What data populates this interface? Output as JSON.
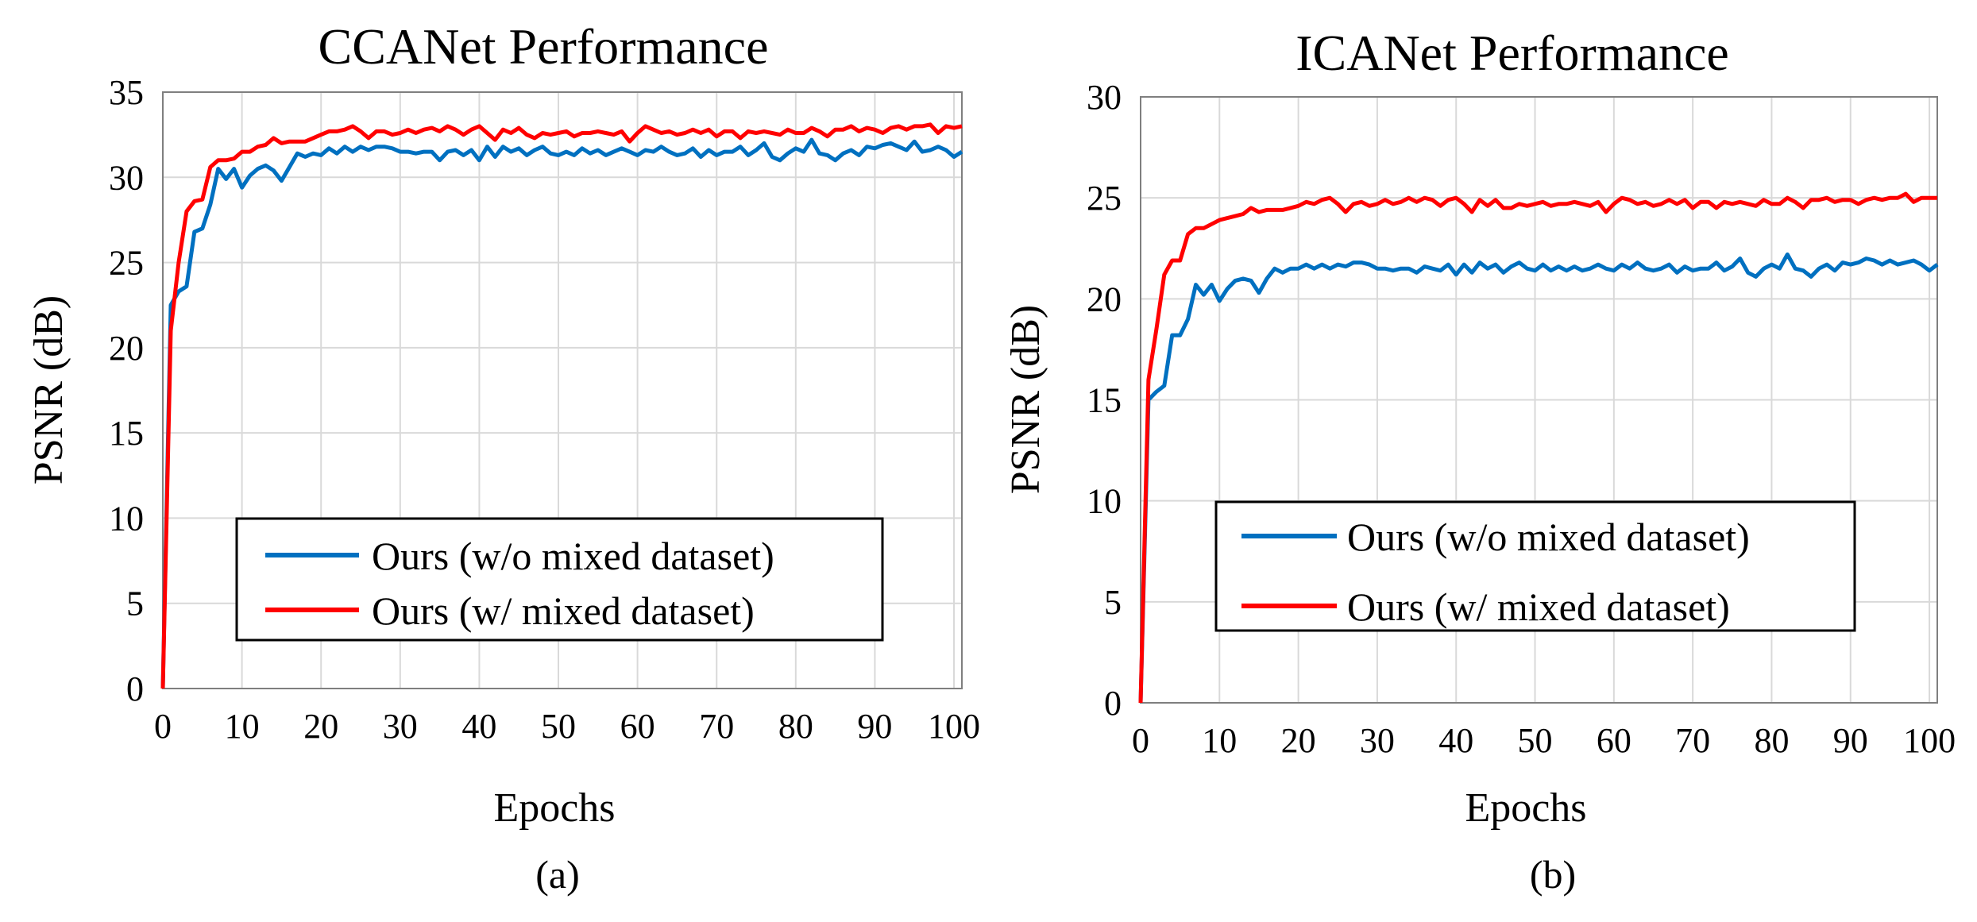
{
  "chart_data": [
    {
      "type": "line",
      "title": "CCANet Performance",
      "xlabel": "Epochs",
      "ylabel": "PSNR (dB)",
      "caption": "(a)",
      "xlim": [
        0,
        101
      ],
      "ylim": [
        0,
        35
      ],
      "xticks": [
        "0",
        "10",
        "20",
        "30",
        "40",
        "50",
        "60",
        "70",
        "80",
        "90",
        "100"
      ],
      "yticks": [
        "0",
        "5",
        "10",
        "15",
        "20",
        "25",
        "30",
        "35"
      ],
      "grid": true,
      "legend_position": "lower-right",
      "x": [
        0,
        1,
        2,
        3,
        4,
        5,
        6,
        7,
        8,
        9,
        10,
        11,
        12,
        13,
        14,
        15,
        16,
        17,
        18,
        19,
        20,
        21,
        22,
        23,
        24,
        25,
        26,
        27,
        28,
        29,
        30,
        31,
        32,
        33,
        34,
        35,
        36,
        37,
        38,
        39,
        40,
        41,
        42,
        43,
        44,
        45,
        46,
        47,
        48,
        49,
        50,
        51,
        52,
        53,
        54,
        55,
        56,
        57,
        58,
        59,
        60,
        61,
        62,
        63,
        64,
        65,
        66,
        67,
        68,
        69,
        70,
        71,
        72,
        73,
        74,
        75,
        76,
        77,
        78,
        79,
        80,
        81,
        82,
        83,
        84,
        85,
        86,
        87,
        88,
        89,
        90,
        91,
        92,
        93,
        94,
        95,
        96,
        97,
        98,
        99,
        100,
        101
      ],
      "series": [
        {
          "name": "Ours (w/o mixed dataset)",
          "color": "#0070c0",
          "values": [
            0,
            22.5,
            23.3,
            23.6,
            26.8,
            27.0,
            28.4,
            30.5,
            29.9,
            30.5,
            29.4,
            30.1,
            30.5,
            30.7,
            30.4,
            29.8,
            30.6,
            31.4,
            31.2,
            31.4,
            31.3,
            31.7,
            31.4,
            31.8,
            31.5,
            31.8,
            31.6,
            31.8,
            31.8,
            31.7,
            31.5,
            31.5,
            31.4,
            31.5,
            31.5,
            31.0,
            31.5,
            31.6,
            31.3,
            31.6,
            31.0,
            31.8,
            31.2,
            31.8,
            31.5,
            31.7,
            31.3,
            31.6,
            31.8,
            31.4,
            31.3,
            31.5,
            31.3,
            31.7,
            31.4,
            31.6,
            31.3,
            31.5,
            31.7,
            31.5,
            31.3,
            31.6,
            31.5,
            31.8,
            31.5,
            31.3,
            31.4,
            31.7,
            31.2,
            31.6,
            31.3,
            31.5,
            31.5,
            31.8,
            31.3,
            31.6,
            32.0,
            31.2,
            31.0,
            31.4,
            31.7,
            31.5,
            32.2,
            31.4,
            31.3,
            31.0,
            31.4,
            31.6,
            31.3,
            31.8,
            31.7,
            31.9,
            32.0,
            31.8,
            31.6,
            32.1,
            31.5,
            31.6,
            31.8,
            31.6,
            31.2,
            31.5
          ]
        },
        {
          "name": "Ours (w/ mixed dataset)",
          "color": "#ff0000",
          "values": [
            0,
            21.0,
            25.0,
            28.0,
            28.6,
            28.7,
            30.6,
            31.0,
            31.0,
            31.1,
            31.5,
            31.5,
            31.8,
            31.9,
            32.3,
            32.0,
            32.1,
            32.1,
            32.1,
            32.3,
            32.5,
            32.7,
            32.7,
            32.8,
            33.0,
            32.7,
            32.3,
            32.7,
            32.7,
            32.5,
            32.6,
            32.8,
            32.6,
            32.8,
            32.9,
            32.7,
            33.0,
            32.8,
            32.5,
            32.8,
            33.0,
            32.6,
            32.2,
            32.8,
            32.6,
            32.9,
            32.5,
            32.3,
            32.6,
            32.5,
            32.6,
            32.7,
            32.4,
            32.6,
            32.6,
            32.7,
            32.6,
            32.5,
            32.7,
            32.1,
            32.6,
            33.0,
            32.8,
            32.6,
            32.7,
            32.5,
            32.6,
            32.8,
            32.6,
            32.8,
            32.4,
            32.7,
            32.7,
            32.3,
            32.7,
            32.6,
            32.7,
            32.6,
            32.5,
            32.8,
            32.6,
            32.6,
            32.9,
            32.7,
            32.4,
            32.8,
            32.8,
            33.0,
            32.7,
            32.9,
            32.8,
            32.6,
            32.9,
            33.0,
            32.8,
            33.0,
            33.0,
            33.1,
            32.6,
            33.0,
            32.9,
            33.0
          ]
        }
      ]
    },
    {
      "type": "line",
      "title": "ICANet Performance",
      "xlabel": "Epochs",
      "ylabel": "PSNR (dB)",
      "caption": "(b)",
      "xlim": [
        0,
        101
      ],
      "ylim": [
        0,
        30
      ],
      "xticks": [
        "0",
        "10",
        "20",
        "30",
        "40",
        "50",
        "60",
        "70",
        "80",
        "90",
        "100"
      ],
      "yticks": [
        "0",
        "5",
        "10",
        "15",
        "20",
        "25",
        "30"
      ],
      "grid": true,
      "legend_position": "lower-right",
      "x": [
        0,
        1,
        2,
        3,
        4,
        5,
        6,
        7,
        8,
        9,
        10,
        11,
        12,
        13,
        14,
        15,
        16,
        17,
        18,
        19,
        20,
        21,
        22,
        23,
        24,
        25,
        26,
        27,
        28,
        29,
        30,
        31,
        32,
        33,
        34,
        35,
        36,
        37,
        38,
        39,
        40,
        41,
        42,
        43,
        44,
        45,
        46,
        47,
        48,
        49,
        50,
        51,
        52,
        53,
        54,
        55,
        56,
        57,
        58,
        59,
        60,
        61,
        62,
        63,
        64,
        65,
        66,
        67,
        68,
        69,
        70,
        71,
        72,
        73,
        74,
        75,
        76,
        77,
        78,
        79,
        80,
        81,
        82,
        83,
        84,
        85,
        86,
        87,
        88,
        89,
        90,
        91,
        92,
        93,
        94,
        95,
        96,
        97,
        98,
        99,
        100,
        101
      ],
      "series": [
        {
          "name": "Ours (w/o mixed dataset)",
          "color": "#0070c0",
          "values": [
            0,
            15.0,
            15.4,
            15.7,
            18.2,
            18.2,
            19.0,
            20.7,
            20.2,
            20.7,
            19.9,
            20.5,
            20.9,
            21.0,
            20.9,
            20.3,
            21.0,
            21.5,
            21.3,
            21.5,
            21.5,
            21.7,
            21.5,
            21.7,
            21.5,
            21.7,
            21.6,
            21.8,
            21.8,
            21.7,
            21.5,
            21.5,
            21.4,
            21.5,
            21.5,
            21.3,
            21.6,
            21.5,
            21.4,
            21.7,
            21.2,
            21.7,
            21.3,
            21.8,
            21.5,
            21.7,
            21.3,
            21.6,
            21.8,
            21.5,
            21.4,
            21.7,
            21.4,
            21.6,
            21.4,
            21.6,
            21.4,
            21.5,
            21.7,
            21.5,
            21.4,
            21.7,
            21.5,
            21.8,
            21.5,
            21.4,
            21.5,
            21.7,
            21.3,
            21.6,
            21.4,
            21.5,
            21.5,
            21.8,
            21.4,
            21.6,
            22.0,
            21.3,
            21.1,
            21.5,
            21.7,
            21.5,
            22.2,
            21.5,
            21.4,
            21.1,
            21.5,
            21.7,
            21.4,
            21.8,
            21.7,
            21.8,
            22.0,
            21.9,
            21.7,
            21.9,
            21.7,
            21.8,
            21.9,
            21.7,
            21.4,
            21.7
          ]
        },
        {
          "name": "Ours (w/ mixed dataset)",
          "color": "#ff0000",
          "values": [
            0,
            16.0,
            18.5,
            21.2,
            21.9,
            21.9,
            23.2,
            23.5,
            23.5,
            23.7,
            23.9,
            24.0,
            24.1,
            24.2,
            24.5,
            24.3,
            24.4,
            24.4,
            24.4,
            24.5,
            24.6,
            24.8,
            24.7,
            24.9,
            25.0,
            24.7,
            24.3,
            24.7,
            24.8,
            24.6,
            24.7,
            24.9,
            24.7,
            24.8,
            25.0,
            24.8,
            25.0,
            24.9,
            24.6,
            24.9,
            25.0,
            24.7,
            24.3,
            24.9,
            24.6,
            24.9,
            24.5,
            24.5,
            24.7,
            24.6,
            24.7,
            24.8,
            24.6,
            24.7,
            24.7,
            24.8,
            24.7,
            24.6,
            24.8,
            24.3,
            24.7,
            25.0,
            24.9,
            24.7,
            24.8,
            24.6,
            24.7,
            24.9,
            24.7,
            24.9,
            24.5,
            24.8,
            24.8,
            24.5,
            24.8,
            24.7,
            24.8,
            24.7,
            24.6,
            24.9,
            24.7,
            24.7,
            25.0,
            24.8,
            24.5,
            24.9,
            24.9,
            25.0,
            24.8,
            24.9,
            24.9,
            24.7,
            24.9,
            25.0,
            24.9,
            25.0,
            25.0,
            25.2,
            24.8,
            25.0,
            25.0,
            25.0
          ]
        }
      ]
    }
  ]
}
